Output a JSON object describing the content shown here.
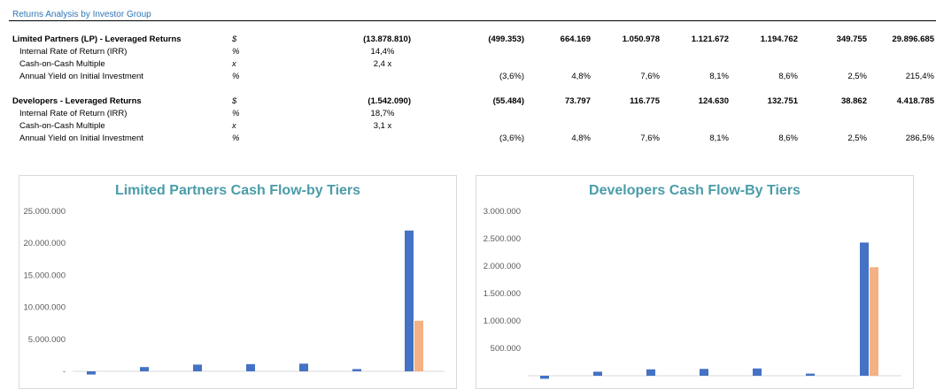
{
  "header": {
    "title": "Returns Analysis by Investor Group"
  },
  "tables": [
    {
      "main_row": {
        "label": "Limited Partners (LP) - Leveraged Returns",
        "unit": "$",
        "total": "(13.878.810)",
        "values": [
          "(499.353)",
          "664.169",
          "1.050.978",
          "1.121.672",
          "1.194.762",
          "349.755",
          "29.896.685"
        ]
      },
      "irr": {
        "label": "Internal Rate of Return (IRR)",
        "unit": "%",
        "value": "14,4%"
      },
      "coc": {
        "label": "Cash-on-Cash Multiple",
        "unit": "x",
        "value": "2,4 x"
      },
      "yield": {
        "label": "Annual Yield on Initial Investment",
        "unit": "%",
        "values": [
          "(3,6%)",
          "4,8%",
          "7,6%",
          "8,1%",
          "8,6%",
          "2,5%",
          "215,4%"
        ]
      }
    },
    {
      "main_row": {
        "label": "Developers - Leveraged Returns",
        "unit": "$",
        "total": "(1.542.090)",
        "values": [
          "(55.484)",
          "73.797",
          "116.775",
          "124.630",
          "132.751",
          "38.862",
          "4.418.785"
        ]
      },
      "irr": {
        "label": "Internal Rate of Return (IRR)",
        "unit": "%",
        "value": "18,7%"
      },
      "coc": {
        "label": "Cash-on-Cash Multiple",
        "unit": "x",
        "value": "3,1 x"
      },
      "yield": {
        "label": "Annual Yield on Initial Investment",
        "unit": "%",
        "values": [
          "(3,6%)",
          "4,8%",
          "7,6%",
          "8,1%",
          "8,6%",
          "2,5%",
          "286,5%"
        ]
      }
    }
  ],
  "chart_data": [
    {
      "type": "bar",
      "title": "Limited Partners Cash Flow-by Tiers",
      "ylim": [
        0,
        25000000
      ],
      "yticks": [
        0,
        5000000,
        10000000,
        15000000,
        20000000,
        25000000
      ],
      "ytick_labels": [
        "-",
        "5.000.000",
        "10.000.000",
        "15.000.000",
        "20.000.000",
        "25.000.000"
      ],
      "series": [
        {
          "color": "#4472c4",
          "values": [
            -499353,
            664169,
            1050978,
            1121672,
            1194762,
            349755,
            22000000
          ]
        },
        {
          "color": "#f4b183",
          "values": [
            0,
            0,
            0,
            0,
            0,
            0,
            7900000
          ]
        }
      ],
      "grid": false,
      "legend": "none"
    },
    {
      "type": "bar",
      "title": "Developers Cash Flow-By Tiers",
      "ylim": [
        0,
        3000000
      ],
      "yticks": [
        500000,
        1000000,
        1500000,
        2000000,
        2500000,
        3000000
      ],
      "ytick_labels": [
        "500.000",
        "1.000.000",
        "1.500.000",
        "2.000.000",
        "2.500.000",
        "3.000.000"
      ],
      "series": [
        {
          "color": "#4472c4",
          "values": [
            -55484,
            73797,
            116775,
            124630,
            132751,
            38862,
            2430000
          ]
        },
        {
          "color": "#f4b183",
          "values": [
            0,
            0,
            0,
            0,
            0,
            0,
            1980000
          ]
        }
      ],
      "grid": false,
      "legend": "none"
    }
  ]
}
